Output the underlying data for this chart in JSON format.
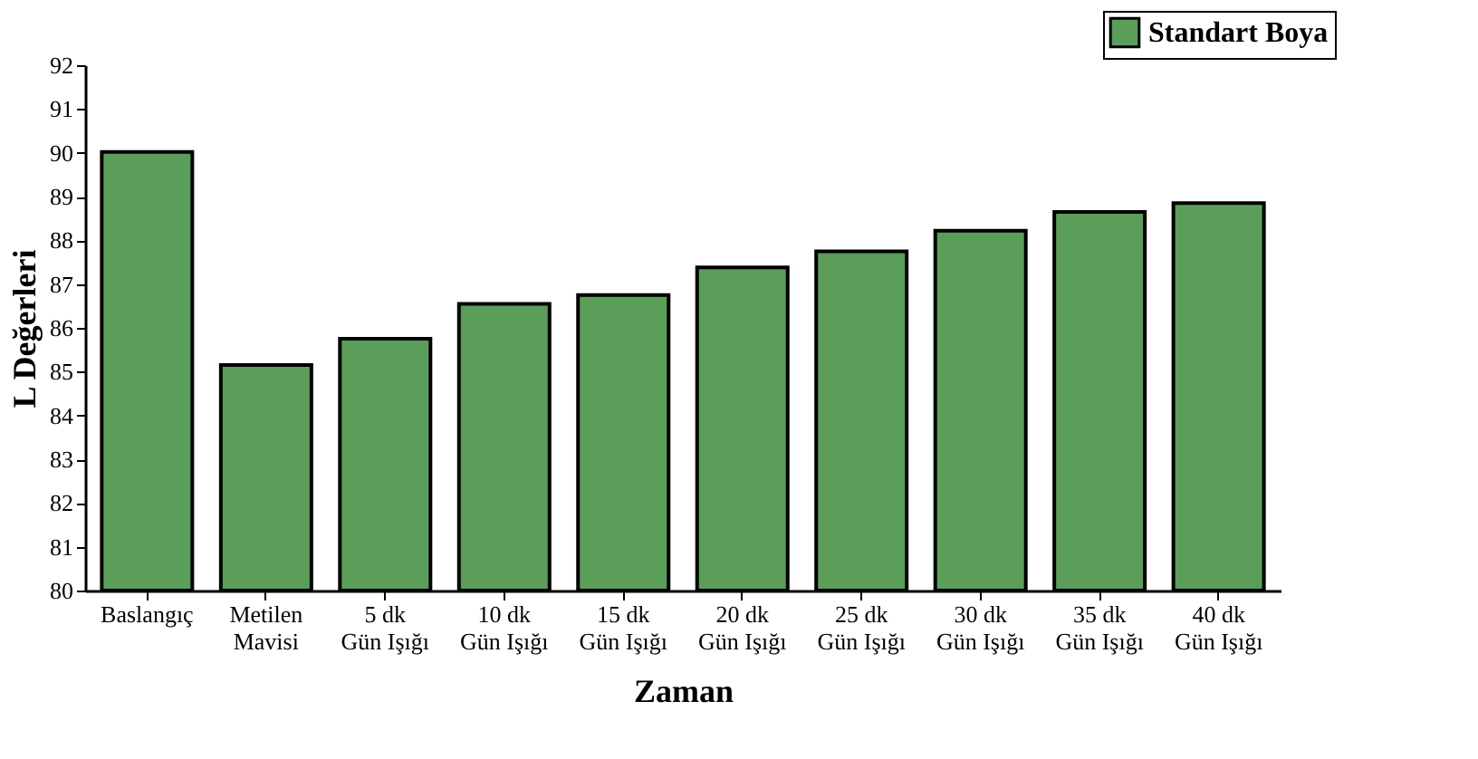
{
  "chart_data": {
    "type": "bar",
    "xlabel": "Zaman",
    "ylabel": "L Değerleri",
    "categories": [
      "Baslangıç",
      "Metilen\nMavisi",
      "5 dk\nGün Işığı",
      "10 dk\nGün Işığı",
      "15 dk\nGün Işığı",
      "20 dk\nGün Işığı",
      "25 dk\nGün Işığı",
      "30 dk\nGün Işığı",
      "35 dk\nGün Işığı",
      "40 dk\nGün Işığı"
    ],
    "series": [
      {
        "name": "Standart Boya",
        "color": "#5a9e5a",
        "values": [
          90.02,
          85.15,
          85.75,
          86.55,
          86.75,
          87.38,
          87.75,
          88.22,
          88.65,
          88.85
        ]
      }
    ],
    "ylim": [
      80,
      92
    ],
    "yticks": [
      80,
      81,
      82,
      83,
      84,
      85,
      86,
      87,
      88,
      89,
      90,
      91,
      92
    ],
    "legend": "top right",
    "grid": false
  }
}
